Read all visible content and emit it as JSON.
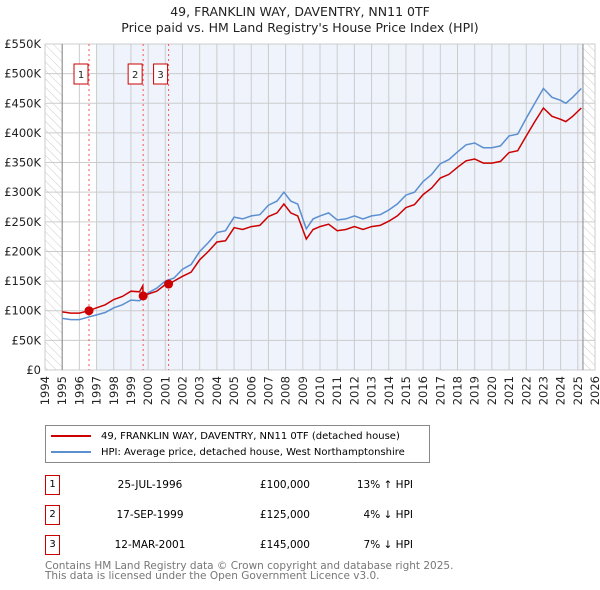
{
  "chart_data": {
    "type": "line",
    "title": "49, FRANKLIN WAY, DAVENTRY, NN11 0TF",
    "subtitle": "Price paid vs. HM Land Registry's House Price Index (HPI)",
    "xlim": [
      1994,
      2026
    ],
    "ylim": [
      0,
      550000
    ],
    "yticks": [
      {
        "v": 0,
        "label": "£0"
      },
      {
        "v": 50000,
        "label": "£50K"
      },
      {
        "v": 100000,
        "label": "£100K"
      },
      {
        "v": 150000,
        "label": "£150K"
      },
      {
        "v": 200000,
        "label": "£200K"
      },
      {
        "v": 250000,
        "label": "£250K"
      },
      {
        "v": 300000,
        "label": "£300K"
      },
      {
        "v": 350000,
        "label": "£350K"
      },
      {
        "v": 400000,
        "label": "£400K"
      },
      {
        "v": 450000,
        "label": "£450K"
      },
      {
        "v": 500000,
        "label": "£500K"
      },
      {
        "v": 550000,
        "label": "£550K"
      }
    ],
    "xticks": [
      "1994",
      "1995",
      "1996",
      "1997",
      "1998",
      "1999",
      "2000",
      "2001",
      "2002",
      "2003",
      "2004",
      "2005",
      "2006",
      "2007",
      "2008",
      "2009",
      "2010",
      "2011",
      "2012",
      "2013",
      "2014",
      "2015",
      "2016",
      "2017",
      "2018",
      "2019",
      "2020",
      "2021",
      "2022",
      "2023",
      "2024",
      "2025",
      "2026"
    ],
    "grid": true,
    "colors": {
      "property": "#cc0000",
      "hpi": "#5b8fd0",
      "shade": "#eef3fc",
      "sale_line": "#ff5555"
    },
    "series": [
      {
        "name": "49, FRANKLIN WAY, DAVENTRY, NN11 0TF (detached house)",
        "color": "#cc0000",
        "x": [
          1995,
          1995.5,
          1996,
          1996.56,
          1997,
          1997.5,
          1998,
          1998.5,
          1999,
          1999.5,
          1999.69,
          1999.71,
          2000,
          2000.5,
          2001,
          2001.19,
          2001.5,
          2002,
          2002.5,
          2003,
          2003.5,
          2004,
          2004.5,
          2005,
          2005.5,
          2006,
          2006.5,
          2007,
          2007.5,
          2007.9,
          2008.3,
          2008.7,
          2009.2,
          2009.6,
          2010,
          2010.5,
          2011,
          2011.5,
          2012,
          2012.5,
          2013,
          2013.5,
          2014,
          2014.5,
          2015,
          2015.5,
          2016,
          2016.5,
          2017,
          2017.5,
          2018,
          2018.5,
          2019,
          2019.5,
          2020,
          2020.5,
          2021,
          2021.5,
          2022,
          2022.5,
          2023,
          2023.5,
          2024,
          2024.3,
          2024.7,
          2025.2
        ],
        "y": [
          98000,
          96000,
          96000,
          100000,
          105000,
          110000,
          119000,
          124000,
          133000,
          132000,
          142000,
          125000,
          128000,
          133000,
          144000,
          145000,
          150000,
          158000,
          165000,
          186000,
          200000,
          216000,
          218000,
          240000,
          237000,
          242000,
          244000,
          259000,
          265000,
          280000,
          265000,
          260000,
          221000,
          237000,
          242000,
          246000,
          235000,
          237000,
          242000,
          237000,
          242000,
          244000,
          251000,
          260000,
          274000,
          279000,
          296000,
          307000,
          324000,
          330000,
          342000,
          353000,
          356000,
          349000,
          349000,
          352000,
          367000,
          370000,
          395000,
          419000,
          442000,
          428000,
          423000,
          419000,
          428000,
          442000
        ]
      },
      {
        "name": "HPI: Average price, detached house, West Northamptonshire",
        "color": "#5b8fd0",
        "x": [
          1995,
          1995.5,
          1996,
          1996.5,
          1997,
          1997.5,
          1998,
          1998.5,
          1999,
          1999.5,
          2000,
          2000.5,
          2001,
          2001.5,
          2002,
          2002.5,
          2003,
          2003.5,
          2004,
          2004.5,
          2005,
          2005.5,
          2006,
          2006.5,
          2007,
          2007.5,
          2007.9,
          2008.3,
          2008.7,
          2009.2,
          2009.6,
          2010,
          2010.5,
          2011,
          2011.5,
          2012,
          2012.5,
          2013,
          2013.5,
          2014,
          2014.5,
          2015,
          2015.5,
          2016,
          2016.5,
          2017,
          2017.5,
          2018,
          2018.5,
          2019,
          2019.5,
          2020,
          2020.5,
          2021,
          2021.5,
          2022,
          2022.5,
          2023,
          2023.5,
          2024,
          2024.3,
          2024.7,
          2025.2
        ],
        "y": [
          87000,
          85000,
          85000,
          89000,
          93000,
          97000,
          105000,
          110000,
          118000,
          117000,
          130000,
          138000,
          150000,
          155000,
          170000,
          178000,
          200000,
          215000,
          232000,
          235000,
          258000,
          255000,
          260000,
          262000,
          278000,
          285000,
          300000,
          285000,
          280000,
          238000,
          255000,
          260000,
          265000,
          253000,
          255000,
          260000,
          255000,
          260000,
          262000,
          270000,
          280000,
          295000,
          300000,
          318000,
          330000,
          348000,
          355000,
          368000,
          380000,
          383000,
          375000,
          375000,
          378000,
          395000,
          398000,
          425000,
          450000,
          475000,
          460000,
          455000,
          450000,
          460000,
          475000
        ]
      }
    ],
    "sales": [
      {
        "id": "1",
        "x": 1996.56,
        "y": 100000,
        "date": "25-JUL-1996",
        "price": "£100,000",
        "hpi": "13% ↑ HPI"
      },
      {
        "id": "2",
        "x": 1999.71,
        "y": 125000,
        "date": "17-SEP-1999",
        "price": "£125,000",
        "hpi": "4% ↓ HPI"
      },
      {
        "id": "3",
        "x": 2001.19,
        "y": 145000,
        "date": "12-MAR-2001",
        "price": "£145,000",
        "hpi": "7% ↓ HPI"
      }
    ],
    "data_range": [
      1995,
      2025.3
    ]
  },
  "footer": {
    "line1": "Contains HM Land Registry data © Crown copyright and database right 2025.",
    "line2": "This data is licensed under the Open Government Licence v3.0."
  }
}
